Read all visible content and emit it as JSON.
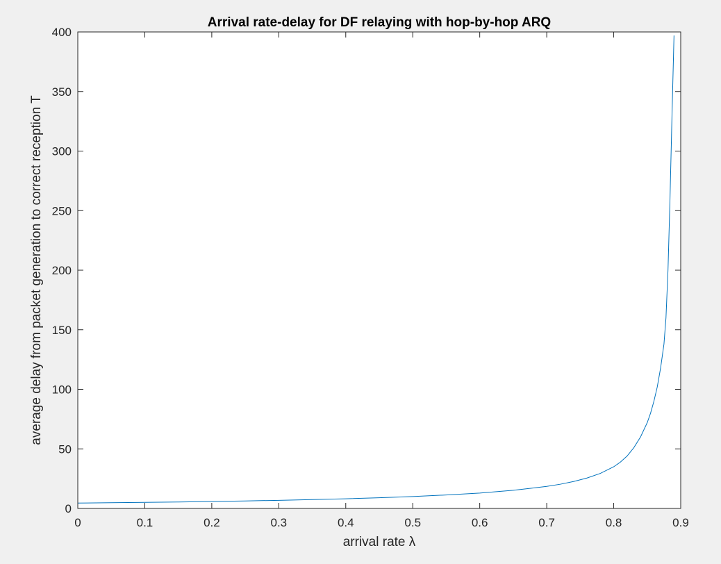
{
  "chart_data": {
    "type": "line",
    "title": "Arrival rate-delay for DF relaying with hop-by-hop ARQ",
    "xlabel": "arrival rate λ",
    "ylabel": "average delay from packet generation to correct reception T",
    "xlim": [
      0,
      0.9
    ],
    "ylim": [
      0,
      400
    ],
    "xticks": [
      0,
      0.1,
      0.2,
      0.3,
      0.4,
      0.5,
      0.6,
      0.7,
      0.8,
      0.9
    ],
    "yticks": [
      0,
      50,
      100,
      150,
      200,
      250,
      300,
      350,
      400
    ],
    "grid": false,
    "series": [
      {
        "color": "#0072bd",
        "x": [
          0,
          0.05,
          0.1,
          0.15,
          0.2,
          0.25,
          0.3,
          0.35,
          0.4,
          0.45,
          0.5,
          0.55,
          0.6,
          0.65,
          0.7,
          0.72,
          0.74,
          0.76,
          0.78,
          0.8,
          0.81,
          0.82,
          0.83,
          0.84,
          0.85,
          0.855,
          0.86,
          0.865,
          0.87,
          0.875,
          0.878,
          0.881,
          0.884,
          0.887,
          0.89
        ],
        "y": [
          4.5,
          4.8,
          5.1,
          5.4,
          5.8,
          6.3,
          6.8,
          7.4,
          8.1,
          9.0,
          10.0,
          11.3,
          12.9,
          15.2,
          18.5,
          20.3,
          22.6,
          25.5,
          29.4,
          35.0,
          38.9,
          44.0,
          51.0,
          60.0,
          72.0,
          80.0,
          90.0,
          102.0,
          118.0,
          138.0,
          160.0,
          200.0,
          260.0,
          330.0,
          397.0
        ]
      }
    ]
  }
}
